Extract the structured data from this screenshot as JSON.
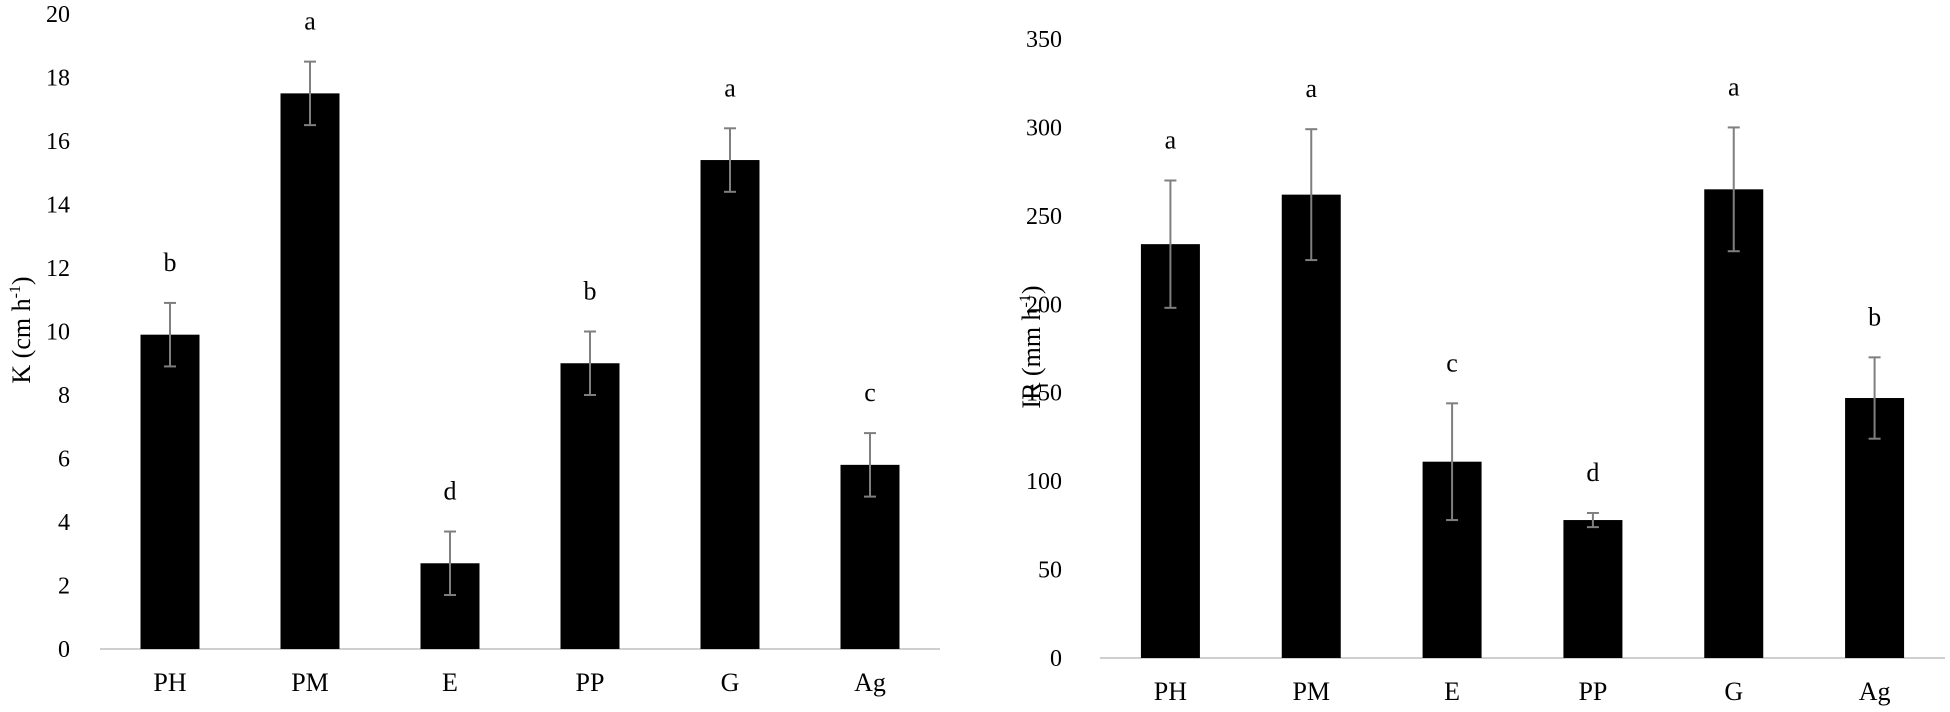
{
  "chart_data": [
    {
      "type": "bar",
      "title": "",
      "xlabel": "",
      "ylabel_main": "K (cm h",
      "ylabel_sup": "-1",
      "ylabel_close": ")",
      "ylim": [
        0,
        20
      ],
      "yticks": [
        "0",
        "2",
        "4",
        "6",
        "8",
        "10",
        "12",
        "14",
        "16",
        "18",
        "20"
      ],
      "categories": [
        "PH",
        "PM",
        "E",
        "PP",
        "G",
        "Ag"
      ],
      "values": [
        9.9,
        17.5,
        2.7,
        9.0,
        15.4,
        5.8
      ],
      "errors": [
        1.0,
        1.0,
        1.0,
        1.0,
        1.0,
        1.0
      ],
      "letters": [
        "b",
        "a",
        "d",
        "b",
        "a",
        "c"
      ],
      "bar_color": "#000000",
      "error_color": "#7f7f7f",
      "grid": false
    },
    {
      "type": "bar",
      "title": "",
      "xlabel": "",
      "ylabel_main": "IR (mm h",
      "ylabel_sup": "-1",
      "ylabel_close": ")",
      "ylim": [
        0,
        350
      ],
      "yticks": [
        "0",
        "50",
        "100",
        "150",
        "200",
        "250",
        "300",
        "350"
      ],
      "categories": [
        "PH",
        "PM",
        "E",
        "PP",
        "G",
        "Ag"
      ],
      "values": [
        234,
        262,
        111,
        78,
        265,
        147
      ],
      "errors": [
        36,
        37,
        33,
        4,
        35,
        23
      ],
      "letters": [
        "a",
        "a",
        "c",
        "d",
        "a",
        "b"
      ],
      "bar_color": "#000000",
      "error_color": "#7f7f7f",
      "grid": false
    }
  ]
}
